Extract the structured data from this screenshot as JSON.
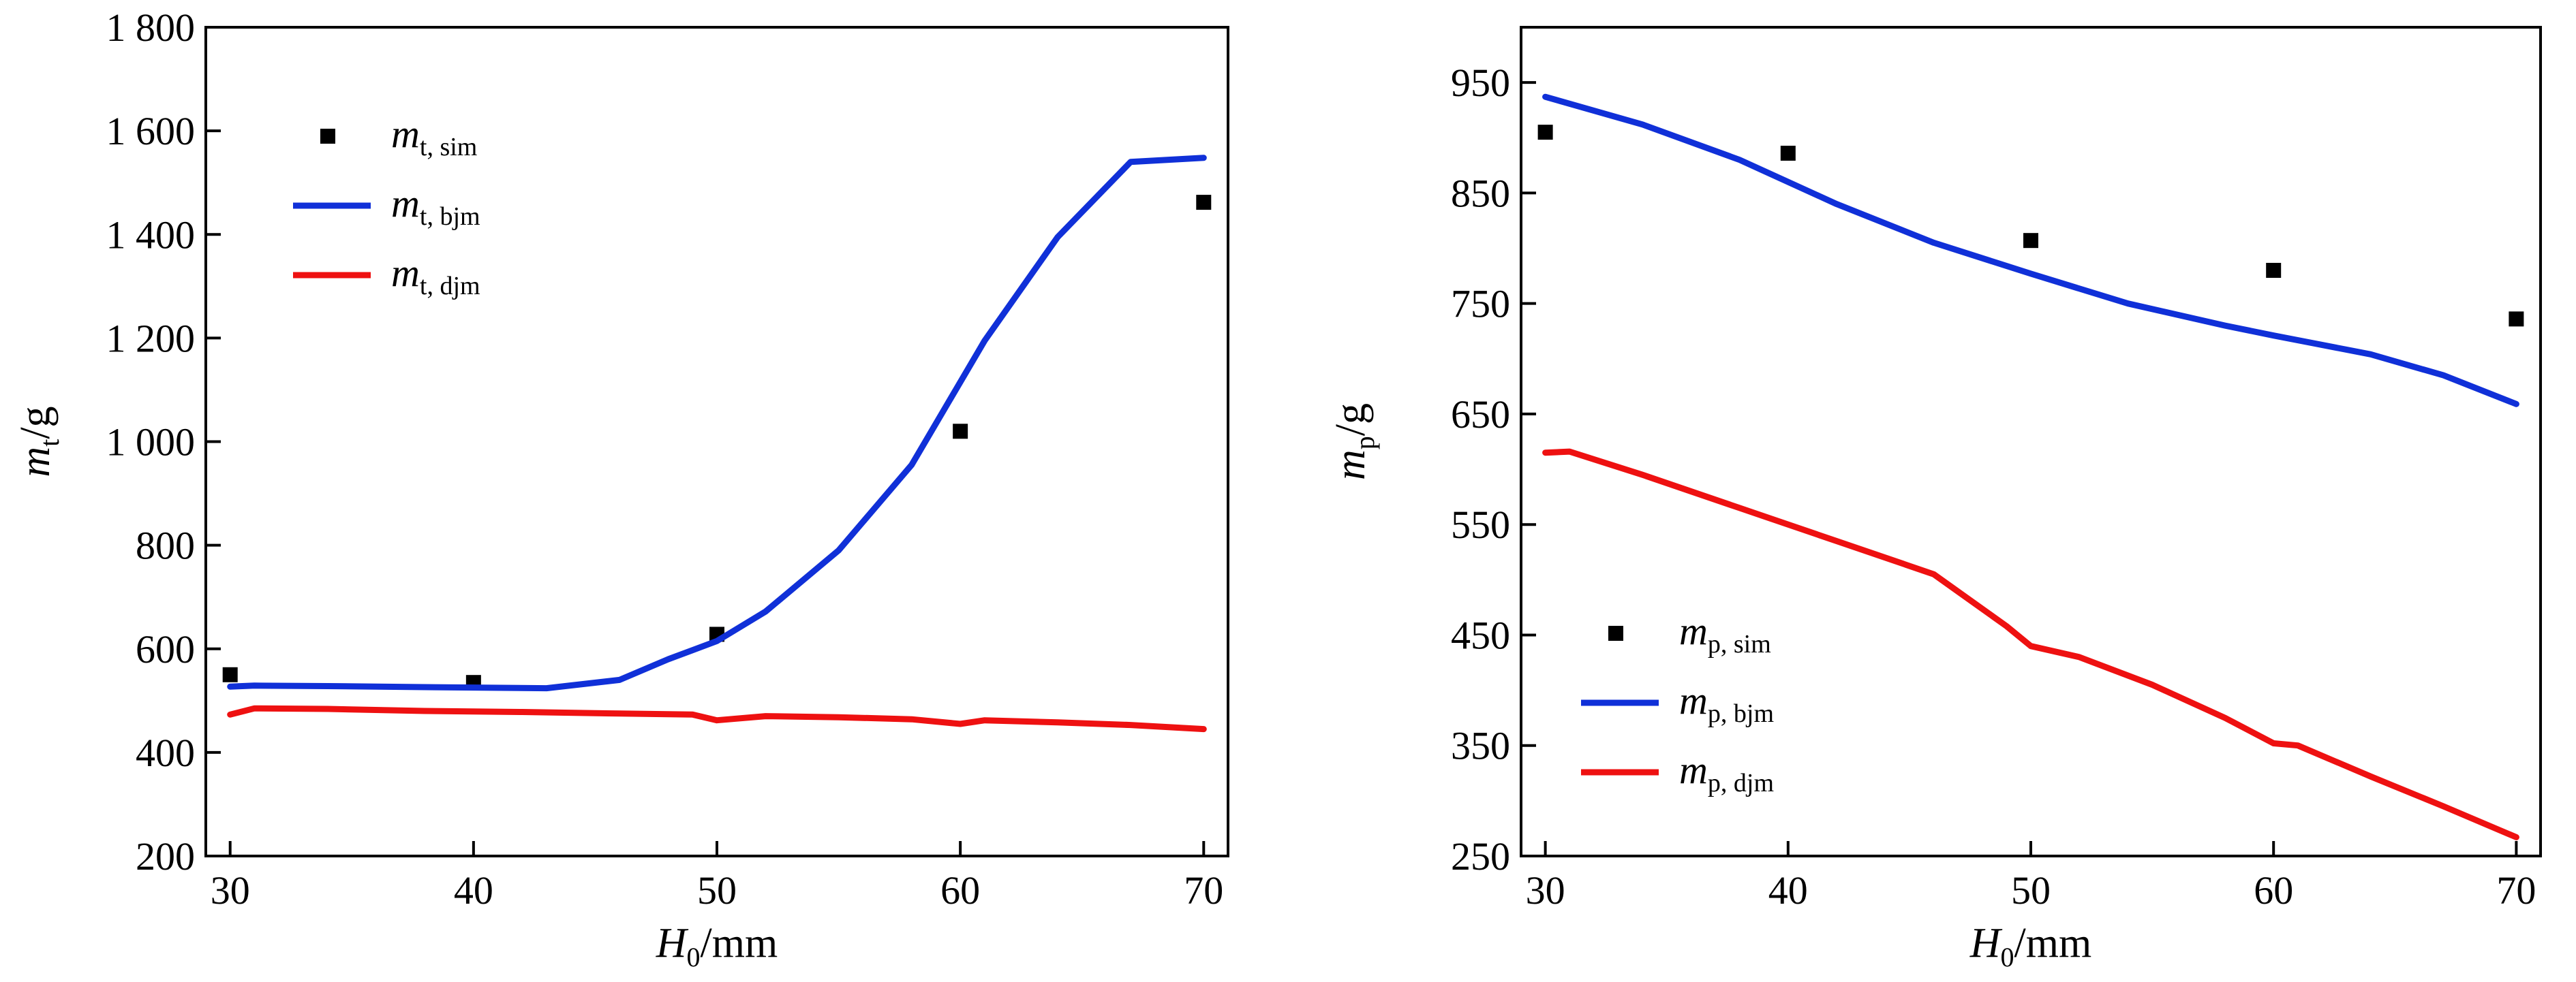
{
  "chart_data": [
    {
      "type": "line",
      "xlabel": {
        "var": "H",
        "sub": "0",
        "unit": "/mm"
      },
      "ylabel": {
        "var": "m",
        "sub": "t",
        "unit": "/g"
      },
      "xlim": [
        29,
        71
      ],
      "ylim": [
        200,
        1800
      ],
      "xticks": [
        30,
        40,
        50,
        60,
        70
      ],
      "yticks": [
        200,
        400,
        600,
        800,
        1000,
        1200,
        1400,
        1600,
        1800
      ],
      "ytick_labels": [
        "200",
        "400",
        "600",
        "800",
        "1 000",
        "1 200",
        "1 400",
        "1 600",
        "1 800"
      ],
      "grid": false,
      "legend_position": "top-left",
      "series": [
        {
          "name": "m",
          "name_sub": "t, sim",
          "kind": "scatter",
          "color": "#000000",
          "x": [
            30,
            40,
            50,
            60,
            70
          ],
          "y": [
            550,
            535,
            628,
            1020,
            1462
          ]
        },
        {
          "name": "m",
          "name_sub": "t, bjm",
          "kind": "line",
          "color": "#1030d8",
          "x": [
            30,
            31,
            34,
            38,
            43,
            46,
            48,
            50,
            52,
            55,
            58,
            61,
            64,
            67,
            70
          ],
          "y": [
            527,
            529,
            528,
            526,
            524,
            540,
            580,
            615,
            672,
            790,
            955,
            1195,
            1395,
            1540,
            1548
          ]
        },
        {
          "name": "m",
          "name_sub": "t, djm",
          "kind": "line",
          "color": "#ee1111",
          "x": [
            30,
            31,
            34,
            38,
            42,
            46,
            49,
            50,
            52,
            55,
            58,
            60,
            61,
            64,
            67,
            70
          ],
          "y": [
            473,
            485,
            484,
            480,
            478,
            475,
            473,
            462,
            470,
            468,
            464,
            455,
            462,
            458,
            453,
            445
          ]
        }
      ]
    },
    {
      "type": "line",
      "xlabel": {
        "var": "H",
        "sub": "0",
        "unit": "/mm"
      },
      "ylabel": {
        "var": "m",
        "sub": "p",
        "unit": "/g"
      },
      "xlim": [
        29,
        71
      ],
      "ylim": [
        250,
        1000
      ],
      "xticks": [
        30,
        40,
        50,
        60,
        70
      ],
      "yticks": [
        250,
        350,
        450,
        550,
        650,
        750,
        850,
        950
      ],
      "ytick_labels": [
        "250",
        "350",
        "450",
        "550",
        "650",
        "750",
        "850",
        "950"
      ],
      "grid": false,
      "legend_position": "bottom-left",
      "series": [
        {
          "name": "m",
          "name_sub": "p, sim",
          "kind": "scatter",
          "color": "#000000",
          "x": [
            30,
            40,
            50,
            60,
            70
          ],
          "y": [
            905,
            886,
            807,
            780,
            736
          ]
        },
        {
          "name": "m",
          "name_sub": "p, bjm",
          "kind": "line",
          "color": "#1030d8",
          "x": [
            30,
            34,
            38,
            42,
            46,
            50,
            54,
            58,
            60,
            64,
            67,
            70
          ],
          "y": [
            937,
            912,
            880,
            840,
            805,
            777,
            750,
            730,
            721,
            704,
            685,
            659
          ]
        },
        {
          "name": "m",
          "name_sub": "p, djm",
          "kind": "line",
          "color": "#ee1111",
          "x": [
            30,
            31,
            34,
            38,
            42,
            46,
            49,
            50,
            52,
            55,
            58,
            60,
            61,
            64,
            67,
            70
          ],
          "y": [
            615,
            616,
            595,
            565,
            535,
            505,
            458,
            440,
            430,
            405,
            375,
            352,
            350,
            322,
            295,
            267
          ]
        }
      ]
    }
  ]
}
